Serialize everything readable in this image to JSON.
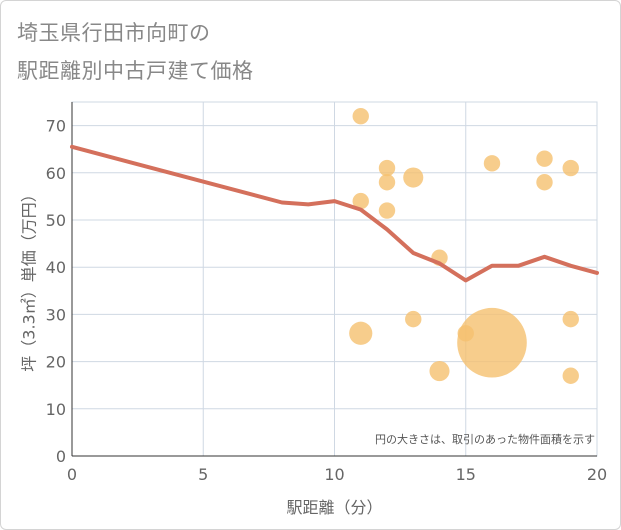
{
  "title_line1": "埼玉県行田市向町の",
  "title_line2": "駅距離別中古戸建て価格",
  "chart_data": {
    "type": "scatter",
    "title": "埼玉県行田市向町の駅距離別中古戸建て価格",
    "xlabel": "駅距離（分）",
    "ylabel": "坪（3.3㎡）単価（万円）",
    "xlim": [
      0,
      20
    ],
    "ylim": [
      0,
      75
    ],
    "xticks": [
      0,
      5,
      10,
      15,
      20
    ],
    "yticks": [
      0,
      10,
      20,
      30,
      40,
      50,
      60,
      70
    ],
    "grid": true,
    "annotation": "円の大きさは、取引のあった物件面積を示す",
    "colors": {
      "points": "#f5c06f",
      "line": "#d4705c",
      "grid": "#cfd8e3"
    },
    "series": [
      {
        "type": "scatter",
        "points": [
          {
            "x": 11,
            "y": 72,
            "size": 1
          },
          {
            "x": 11,
            "y": 54,
            "size": 1
          },
          {
            "x": 11,
            "y": 26,
            "size": 2
          },
          {
            "x": 12,
            "y": 61,
            "size": 1
          },
          {
            "x": 12,
            "y": 58,
            "size": 1
          },
          {
            "x": 12,
            "y": 52,
            "size": 1
          },
          {
            "x": 13,
            "y": 59,
            "size": 1.5
          },
          {
            "x": 13,
            "y": 29,
            "size": 1
          },
          {
            "x": 14,
            "y": 42,
            "size": 1
          },
          {
            "x": 14,
            "y": 18,
            "size": 1.5
          },
          {
            "x": 15,
            "y": 26,
            "size": 1
          },
          {
            "x": 16,
            "y": 62,
            "size": 1
          },
          {
            "x": 16,
            "y": 24,
            "size": 18
          },
          {
            "x": 18,
            "y": 63,
            "size": 1
          },
          {
            "x": 18,
            "y": 58,
            "size": 1
          },
          {
            "x": 19,
            "y": 61,
            "size": 1
          },
          {
            "x": 19,
            "y": 29,
            "size": 1
          },
          {
            "x": 19,
            "y": 17,
            "size": 1
          }
        ]
      },
      {
        "type": "line",
        "x": [
          0,
          8,
          9,
          10,
          11,
          12,
          13,
          14,
          15,
          16,
          17,
          18,
          19,
          20
        ],
        "y": [
          65.5,
          53.7,
          53.3,
          54,
          52.2,
          48,
          43,
          40.8,
          37.2,
          40.3,
          40.3,
          42.2,
          40.3,
          38.8
        ]
      }
    ]
  }
}
